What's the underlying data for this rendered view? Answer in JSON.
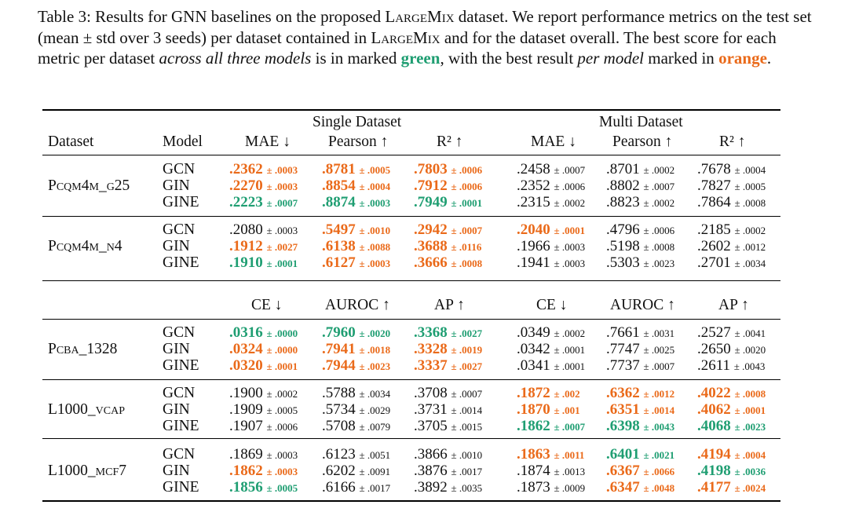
{
  "caption": {
    "p1": "Table 3: Results for GNN baselines on the proposed ",
    "sc1": "LargeMix",
    "p2": " dataset. We report performance metrics on the test set (mean ± std over 3 seeds) per dataset contained in ",
    "sc2": "LargeMix",
    "p3": " and for the dataset overall. The best score for each metric per dataset ",
    "em1": "across all three models",
    "p4": " is in marked ",
    "green_word": "green",
    "p5": ", with the best result ",
    "em2": "per model",
    "p6": " marked in ",
    "orange_word": "orange",
    "p7": "."
  },
  "colors": {
    "best_overall": "#1f9e72",
    "best_per_model": "#ea6a1a"
  },
  "table": {
    "group_single": "Single Dataset",
    "group_multi": "Multi Dataset",
    "col_dataset": "Dataset",
    "col_model": "Model",
    "regression_metrics": [
      "MAE ↓",
      "Pearson ↑",
      "R² ↑",
      "MAE ↓",
      "Pearson ↑",
      "R² ↑"
    ],
    "classification_metrics": [
      "CE ↓",
      "AUROC ↑",
      "AP ↑",
      "CE ↓",
      "AUROC ↑",
      "AP ↑"
    ],
    "models": [
      "GCN",
      "GIN",
      "GINE"
    ],
    "datasets": [
      {
        "name": "Pcqm4m_g25",
        "rows": [
          [
            [
              ".2362",
              "± .0003",
              "o"
            ],
            [
              ".8781",
              "± .0005",
              "o"
            ],
            [
              ".7803",
              "± .0006",
              "o"
            ],
            [
              ".2458",
              "± .0007",
              "n"
            ],
            [
              ".8701",
              "± .0002",
              "n"
            ],
            [
              ".7678",
              "± .0004",
              "n"
            ]
          ],
          [
            [
              ".2270",
              "± .0003",
              "o"
            ],
            [
              ".8854",
              "± .0004",
              "o"
            ],
            [
              ".7912",
              "± .0006",
              "o"
            ],
            [
              ".2352",
              "± .0006",
              "n"
            ],
            [
              ".8802",
              "± .0007",
              "n"
            ],
            [
              ".7827",
              "± .0005",
              "n"
            ]
          ],
          [
            [
              ".2223",
              "± .0007",
              "g"
            ],
            [
              ".8874",
              "± .0003",
              "g"
            ],
            [
              ".7949",
              "± .0001",
              "g"
            ],
            [
              ".2315",
              "± .0002",
              "n"
            ],
            [
              ".8823",
              "± .0002",
              "n"
            ],
            [
              ".7864",
              "± .0008",
              "n"
            ]
          ]
        ]
      },
      {
        "name": "Pcqm4m_n4",
        "rows": [
          [
            [
              ".2080",
              "± .0003",
              "n"
            ],
            [
              ".5497",
              "± .0010",
              "o"
            ],
            [
              ".2942",
              "± .0007",
              "o"
            ],
            [
              ".2040",
              "± .0001",
              "o"
            ],
            [
              ".4796",
              "± .0006",
              "n"
            ],
            [
              ".2185",
              "± .0002",
              "n"
            ]
          ],
          [
            [
              ".1912",
              "± .0027",
              "o"
            ],
            [
              ".6138",
              "± .0088",
              "o"
            ],
            [
              ".3688",
              "± .0116",
              "o"
            ],
            [
              ".1966",
              "± .0003",
              "n"
            ],
            [
              ".5198",
              "± .0008",
              "n"
            ],
            [
              ".2602",
              "± .0012",
              "n"
            ]
          ],
          [
            [
              ".1910",
              "± .0001",
              "g"
            ],
            [
              ".6127",
              "± .0003",
              "o"
            ],
            [
              ".3666",
              "± .0008",
              "o"
            ],
            [
              ".1941",
              "± .0003",
              "n"
            ],
            [
              ".5303",
              "± .0023",
              "n"
            ],
            [
              ".2701",
              "± .0034",
              "n"
            ]
          ]
        ]
      },
      {
        "name": "Pcba_1328",
        "rows": [
          [
            [
              ".0316",
              "± .0000",
              "g"
            ],
            [
              ".7960",
              "± .0020",
              "g"
            ],
            [
              ".3368",
              "± .0027",
              "g"
            ],
            [
              ".0349",
              "± .0002",
              "n"
            ],
            [
              ".7661",
              "± .0031",
              "n"
            ],
            [
              ".2527",
              "± .0041",
              "n"
            ]
          ],
          [
            [
              ".0324",
              "± .0000",
              "o"
            ],
            [
              ".7941",
              "± .0018",
              "o"
            ],
            [
              ".3328",
              "± .0019",
              "o"
            ],
            [
              ".0342",
              "± .0001",
              "n"
            ],
            [
              ".7747",
              "± .0025",
              "n"
            ],
            [
              ".2650",
              "± .0020",
              "n"
            ]
          ],
          [
            [
              ".0320",
              "± .0001",
              "o"
            ],
            [
              ".7944",
              "± .0023",
              "o"
            ],
            [
              ".3337",
              "± .0027",
              "o"
            ],
            [
              ".0341",
              "± .0001",
              "n"
            ],
            [
              ".7737",
              "± .0007",
              "n"
            ],
            [
              ".2611",
              "± .0043",
              "n"
            ]
          ]
        ]
      },
      {
        "name": "L1000_vcap",
        "rows": [
          [
            [
              ".1900",
              "± .0002",
              "n"
            ],
            [
              ".5788",
              "± .0034",
              "n"
            ],
            [
              ".3708",
              "± .0007",
              "n"
            ],
            [
              ".1872",
              "± .002",
              "o"
            ],
            [
              ".6362",
              "± .0012",
              "o"
            ],
            [
              ".4022",
              "± .0008",
              "o"
            ]
          ],
          [
            [
              ".1909",
              "± .0005",
              "n"
            ],
            [
              ".5734",
              "± .0029",
              "n"
            ],
            [
              ".3731",
              "± .0014",
              "n"
            ],
            [
              ".1870",
              "± .001",
              "o"
            ],
            [
              ".6351",
              "± .0014",
              "o"
            ],
            [
              ".4062",
              "± .0001",
              "o"
            ]
          ],
          [
            [
              ".1907",
              "± .0006",
              "n"
            ],
            [
              ".5708",
              "± .0079",
              "n"
            ],
            [
              ".3705",
              "± .0015",
              "n"
            ],
            [
              ".1862",
              "± .0007",
              "g"
            ],
            [
              ".6398",
              "± .0043",
              "g"
            ],
            [
              ".4068",
              "± .0023",
              "g"
            ]
          ]
        ]
      },
      {
        "name": "L1000_mcf7",
        "rows": [
          [
            [
              ".1869",
              "± .0003",
              "n"
            ],
            [
              ".6123",
              "± .0051",
              "n"
            ],
            [
              ".3866",
              "± .0010",
              "n"
            ],
            [
              ".1863",
              "± .0011",
              "o"
            ],
            [
              ".6401",
              "± .0021",
              "g"
            ],
            [
              ".4194",
              "± .0004",
              "o"
            ]
          ],
          [
            [
              ".1862",
              "± .0003",
              "o"
            ],
            [
              ".6202",
              "± .0091",
              "n"
            ],
            [
              ".3876",
              "± .0017",
              "n"
            ],
            [
              ".1874",
              "± .0013",
              "n"
            ],
            [
              ".6367",
              "± .0066",
              "o"
            ],
            [
              ".4198",
              "± .0036",
              "g"
            ]
          ],
          [
            [
              ".1856",
              "± .0005",
              "g"
            ],
            [
              ".6166",
              "± .0017",
              "n"
            ],
            [
              ".3892",
              "± .0035",
              "n"
            ],
            [
              ".1873",
              "± .0009",
              "n"
            ],
            [
              ".6347",
              "± .0048",
              "o"
            ],
            [
              ".4177",
              "± .0024",
              "o"
            ]
          ]
        ]
      }
    ]
  }
}
